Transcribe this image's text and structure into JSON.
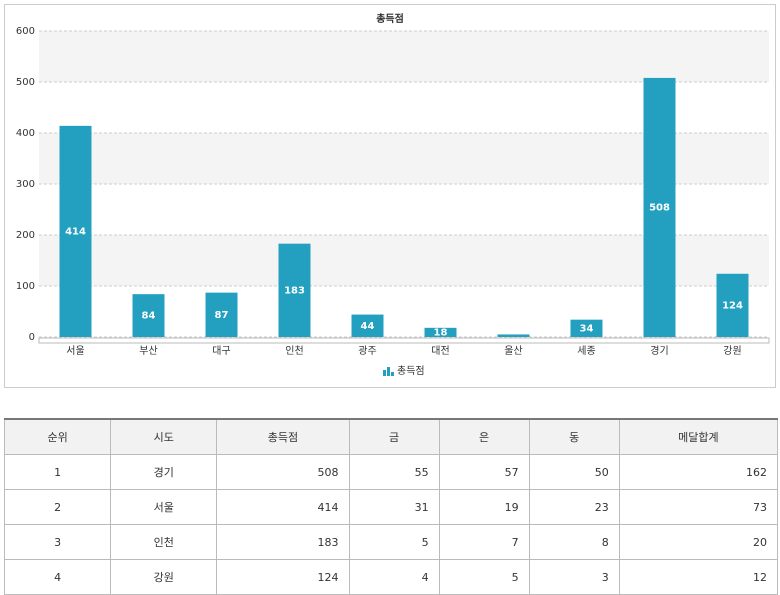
{
  "chart_data": {
    "type": "bar",
    "title": "총득점",
    "categories": [
      "서울",
      "부산",
      "대구",
      "인천",
      "광주",
      "대전",
      "울산",
      "세종",
      "경기",
      "강원"
    ],
    "series": [
      {
        "name": "총득점",
        "color": "#23a0c0",
        "values": [
          414,
          84,
          87,
          183,
          44,
          18,
          5,
          34,
          508,
          124
        ],
        "value_labels": [
          "414",
          "84",
          "87",
          "183",
          "44",
          "18",
          null,
          "34",
          "508",
          "124"
        ]
      }
    ],
    "ylim": [
      0,
      600
    ],
    "yticks": [
      0,
      100,
      200,
      300,
      400,
      500,
      600
    ],
    "grid": true,
    "legend": "bottom"
  },
  "table": {
    "header": [
      "순위",
      "시도",
      "총득점",
      "금",
      "은",
      "동",
      "메달합계"
    ],
    "rows": [
      [
        1,
        "경기",
        508,
        55,
        57,
        50,
        162
      ],
      [
        2,
        "서울",
        414,
        31,
        19,
        23,
        73
      ],
      [
        3,
        "인천",
        183,
        5,
        7,
        8,
        20
      ],
      [
        4,
        "강원",
        124,
        4,
        5,
        3,
        12
      ]
    ]
  }
}
